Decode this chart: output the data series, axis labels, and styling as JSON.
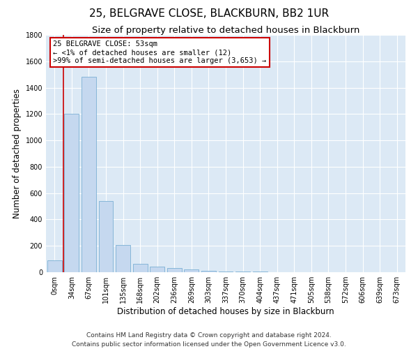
{
  "title": "25, BELGRAVE CLOSE, BLACKBURN, BB2 1UR",
  "subtitle": "Size of property relative to detached houses in Blackburn",
  "xlabel": "Distribution of detached houses by size in Blackburn",
  "ylabel": "Number of detached properties",
  "categories": [
    "0sqm",
    "34sqm",
    "67sqm",
    "101sqm",
    "135sqm",
    "168sqm",
    "202sqm",
    "236sqm",
    "269sqm",
    "303sqm",
    "337sqm",
    "370sqm",
    "404sqm",
    "437sqm",
    "471sqm",
    "505sqm",
    "538sqm",
    "572sqm",
    "606sqm",
    "639sqm",
    "673sqm"
  ],
  "values": [
    90,
    1200,
    1480,
    540,
    205,
    65,
    40,
    30,
    20,
    10,
    5,
    5,
    3,
    2,
    1,
    1,
    0,
    0,
    0,
    0,
    0
  ],
  "bar_color": "#c5d8ef",
  "bar_edge_color": "#7bafd4",
  "marker_label": "25 BELGRAVE CLOSE: 53sqm",
  "annotation_line1": "← <1% of detached houses are smaller (12)",
  "annotation_line2": ">99% of semi-detached houses are larger (3,653) →",
  "annotation_box_color": "#ffffff",
  "annotation_box_edge": "#cc0000",
  "vline_color": "#cc0000",
  "vline_x": 0.5,
  "ylim": [
    0,
    1800
  ],
  "yticks": [
    0,
    200,
    400,
    600,
    800,
    1000,
    1200,
    1400,
    1600,
    1800
  ],
  "footer1": "Contains HM Land Registry data © Crown copyright and database right 2024.",
  "footer2": "Contains public sector information licensed under the Open Government Licence v3.0.",
  "plot_bg_color": "#dce9f5",
  "title_fontsize": 11,
  "subtitle_fontsize": 9.5,
  "axis_label_fontsize": 8.5,
  "tick_fontsize": 7,
  "footer_fontsize": 6.5,
  "annotation_fontsize": 7.5
}
